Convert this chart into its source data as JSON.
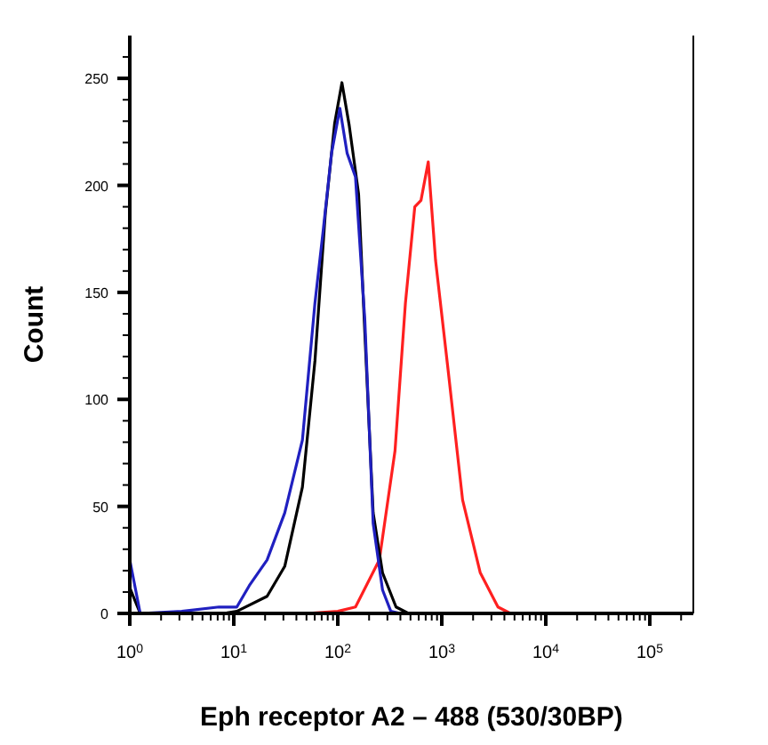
{
  "chart_data": {
    "type": "line",
    "xlabel": "Eph receptor A2 – 488 (530/30BP)",
    "ylabel": "Count",
    "log": "x",
    "grid": false,
    "marker": "none",
    "line_style": "solid",
    "xlim": [
      1,
      262144
    ],
    "ylim": [
      0,
      270
    ],
    "xticks": [
      {
        "value": 1,
        "label": "10$^{0}$"
      },
      {
        "value": 2,
        "label": null
      },
      {
        "value": 3,
        "label": null
      },
      {
        "value": 4,
        "label": null
      },
      {
        "value": 5,
        "label": null
      },
      {
        "value": 6,
        "label": null
      },
      {
        "value": 7,
        "label": null
      },
      {
        "value": 8,
        "label": null
      },
      {
        "value": 9,
        "label": null
      },
      {
        "value": 10,
        "label": "10$^{1}$"
      },
      {
        "value": 20,
        "label": null
      },
      {
        "value": 30,
        "label": null
      },
      {
        "value": 40,
        "label": null
      },
      {
        "value": 50,
        "label": null
      },
      {
        "value": 60,
        "label": null
      },
      {
        "value": 70,
        "label": null
      },
      {
        "value": 80,
        "label": null
      },
      {
        "value": 90,
        "label": null
      },
      {
        "value": 100,
        "label": "10$^{2}$"
      },
      {
        "value": 200,
        "label": null
      },
      {
        "value": 300,
        "label": null
      },
      {
        "value": 400,
        "label": null
      },
      {
        "value": 500,
        "label": null
      },
      {
        "value": 600,
        "label": null
      },
      {
        "value": 700,
        "label": null
      },
      {
        "value": 800,
        "label": null
      },
      {
        "value": 900,
        "label": null
      },
      {
        "value": 1000,
        "label": "10$^{3}$"
      },
      {
        "value": 2000,
        "label": null
      },
      {
        "value": 3000,
        "label": null
      },
      {
        "value": 4000,
        "label": null
      },
      {
        "value": 5000,
        "label": null
      },
      {
        "value": 6000,
        "label": null
      },
      {
        "value": 7000,
        "label": null
      },
      {
        "value": 8000,
        "label": null
      },
      {
        "value": 9000,
        "label": null
      },
      {
        "value": 10000,
        "label": "10$^{4}$"
      },
      {
        "value": 20000,
        "label": null
      },
      {
        "value": 30000,
        "label": null
      },
      {
        "value": 40000,
        "label": null
      },
      {
        "value": 50000,
        "label": null
      },
      {
        "value": 60000,
        "label": null
      },
      {
        "value": 70000,
        "label": null
      },
      {
        "value": 80000,
        "label": null
      },
      {
        "value": 90000,
        "label": null
      },
      {
        "value": 100000,
        "label": "10$^{5}$"
      },
      {
        "value": 200000,
        "label": null
      }
    ],
    "yticks": [
      0,
      {
        "value": 10,
        "label": null
      },
      {
        "value": 20,
        "label": null
      },
      {
        "value": 30,
        "label": null
      },
      {
        "value": 40,
        "label": null
      },
      50,
      {
        "value": 60,
        "label": null
      },
      {
        "value": 70,
        "label": null
      },
      {
        "value": 80,
        "label": null
      },
      {
        "value": 90,
        "label": null
      },
      100,
      {
        "value": 110,
        "label": null
      },
      {
        "value": 120,
        "label": null
      },
      {
        "value": 130,
        "label": null
      },
      {
        "value": 140,
        "label": null
      },
      150,
      {
        "value": 160,
        "label": null
      },
      {
        "value": 170,
        "label": null
      },
      {
        "value": 180,
        "label": null
      },
      {
        "value": 190,
        "label": null
      },
      200,
      {
        "value": 210,
        "label": null
      },
      {
        "value": 220,
        "label": null
      },
      {
        "value": 230,
        "label": null
      },
      {
        "value": 240,
        "label": null
      },
      250,
      {
        "value": 260,
        "label": null
      }
    ],
    "series": [
      {
        "color": "#ff2020",
        "x": [
          1,
          50,
          100,
          148,
          251,
          355,
          447,
          550,
          631,
          741,
          871,
          1148,
          1585,
          2344,
          3467,
          4571,
          262144
        ],
        "values": [
          0,
          0,
          1,
          3,
          25,
          76,
          145,
          190,
          193,
          211,
          165,
          114,
          53,
          19,
          3,
          0,
          0
        ]
      },
      {
        "color": "#000000",
        "x": [
          1,
          1.26,
          8,
          10.7,
          20.9,
          30.9,
          45.7,
          60.3,
          75.9,
          93.3,
          109.6,
          128.8,
          158.5,
          182,
          218.8,
          269.2,
          363.1,
          478.6,
          262144
        ],
        "values": [
          12,
          0,
          0,
          1,
          8,
          22,
          59,
          118,
          187,
          229,
          248,
          228,
          196,
          131,
          47,
          19,
          3,
          0,
          0
        ]
      },
      {
        "color": "#2020c0",
        "x": [
          1,
          1.26,
          3.16,
          7.2,
          10.7,
          14.1,
          20.9,
          30.9,
          45.7,
          60.3,
          72.4,
          87.1,
          104.7,
          123,
          147.9,
          182,
          218.8,
          269.2,
          323.6,
          398,
          262144
        ],
        "values": [
          25,
          0,
          1,
          3,
          3,
          13,
          25,
          47,
          81,
          145,
          179,
          215,
          236,
          215,
          204,
          137,
          42,
          11,
          1,
          0,
          0
        ]
      }
    ]
  }
}
